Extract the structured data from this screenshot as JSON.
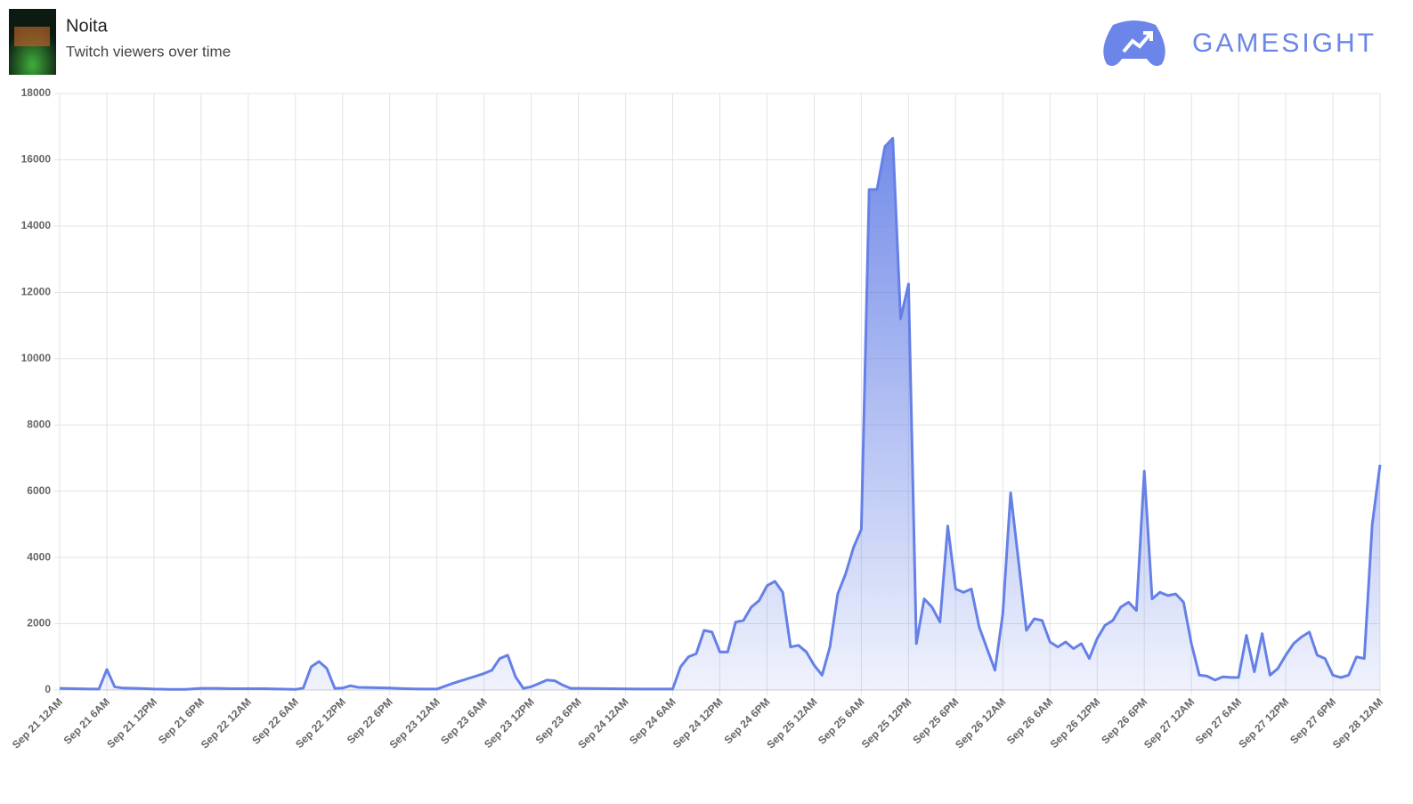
{
  "header": {
    "title": "Noita",
    "subtitle": "Twitch viewers over time",
    "brand": "GAMESIGHT"
  },
  "chart_data": {
    "type": "area",
    "color": "#6580e6",
    "grid": true,
    "x": [
      0,
      2,
      4,
      5,
      6,
      7,
      8,
      10,
      12,
      14,
      16,
      18,
      20,
      22,
      24,
      26,
      28,
      30,
      31,
      32,
      33,
      34,
      35,
      36,
      37,
      38,
      40,
      42,
      44,
      46,
      48,
      50,
      52,
      54,
      55,
      56,
      57,
      58,
      59,
      60,
      61,
      62,
      63,
      64,
      65,
      66,
      70,
      74,
      78,
      79,
      80,
      81,
      82,
      83,
      84,
      85,
      86,
      87,
      88,
      89,
      90,
      91,
      92,
      93,
      94,
      95,
      96,
      97,
      98,
      99,
      100,
      101,
      102,
      103,
      104,
      105,
      106,
      107,
      108,
      109,
      110,
      111,
      112,
      113,
      114,
      115,
      116,
      117,
      118,
      119,
      120,
      121,
      122,
      123,
      124,
      125,
      126,
      127,
      128,
      129,
      130,
      131,
      132,
      133,
      134,
      135,
      136,
      137,
      138,
      139,
      140,
      141,
      142,
      143,
      144,
      145,
      146,
      147,
      148,
      149,
      150,
      151,
      152,
      153,
      154,
      155,
      156,
      157,
      158,
      159,
      160,
      161,
      162,
      163,
      164,
      165,
      166,
      167,
      168
    ],
    "values": [
      50,
      40,
      30,
      30,
      620,
      100,
      60,
      50,
      30,
      20,
      20,
      50,
      50,
      40,
      40,
      40,
      30,
      20,
      60,
      700,
      860,
      650,
      50,
      60,
      130,
      80,
      70,
      60,
      40,
      30,
      30,
      200,
      350,
      500,
      600,
      950,
      1050,
      400,
      50,
      100,
      200,
      300,
      280,
      150,
      50,
      50,
      40,
      30,
      30,
      700,
      1000,
      1100,
      1800,
      1750,
      1150,
      1150,
      2050,
      2100,
      2500,
      2700,
      3150,
      3280,
      2950,
      1300,
      1350,
      1150,
      750,
      450,
      1300,
      2900,
      3500,
      4300,
      4850,
      15100,
      15100,
      16400,
      16650,
      11200,
      12250,
      1400,
      2750,
      2500,
      2050,
      4950,
      3050,
      2950,
      3050,
      1900,
      1250,
      600,
      2300,
      5950,
      3900,
      1800,
      2150,
      2100,
      1450,
      1300,
      1450,
      1250,
      1400,
      950,
      1550,
      1950,
      2100,
      2500,
      2650,
      2400,
      6600,
      2750,
      2950,
      2850,
      2900,
      2650,
      1400,
      450,
      420,
      300,
      400,
      380,
      380,
      1650,
      550,
      1700,
      450,
      650,
      1050,
      1400,
      1600,
      1750,
      1050,
      950,
      450,
      380,
      450,
      1000,
      950,
      5000,
      6800
    ],
    "xlim": [
      0,
      168
    ],
    "xticks": [
      {
        "value": 0,
        "label": "Sep 21 12AM"
      },
      {
        "value": 6,
        "label": "Sep 21 6AM"
      },
      {
        "value": 12,
        "label": "Sep 21 12PM"
      },
      {
        "value": 18,
        "label": "Sep 21 6PM"
      },
      {
        "value": 24,
        "label": "Sep 22 12AM"
      },
      {
        "value": 30,
        "label": "Sep 22 6AM"
      },
      {
        "value": 36,
        "label": "Sep 22 12PM"
      },
      {
        "value": 42,
        "label": "Sep 22 6PM"
      },
      {
        "value": 48,
        "label": "Sep 23 12AM"
      },
      {
        "value": 54,
        "label": "Sep 23 6AM"
      },
      {
        "value": 60,
        "label": "Sep 23 12PM"
      },
      {
        "value": 66,
        "label": "Sep 23 6PM"
      },
      {
        "value": 72,
        "label": "Sep 24 12AM"
      },
      {
        "value": 78,
        "label": "Sep 24 6AM"
      },
      {
        "value": 84,
        "label": "Sep 24 12PM"
      },
      {
        "value": 90,
        "label": "Sep 24 6PM"
      },
      {
        "value": 96,
        "label": "Sep 25 12AM"
      },
      {
        "value": 102,
        "label": "Sep 25 6AM"
      },
      {
        "value": 108,
        "label": "Sep 25 12PM"
      },
      {
        "value": 114,
        "label": "Sep 25 6PM"
      },
      {
        "value": 120,
        "label": "Sep 26 12AM"
      },
      {
        "value": 126,
        "label": "Sep 26 6AM"
      },
      {
        "value": 132,
        "label": "Sep 26 12PM"
      },
      {
        "value": 138,
        "label": "Sep 26 6PM"
      },
      {
        "value": 144,
        "label": "Sep 27 12AM"
      },
      {
        "value": 150,
        "label": "Sep 27 6AM"
      },
      {
        "value": 156,
        "label": "Sep 27 12PM"
      },
      {
        "value": 162,
        "label": "Sep 27 6PM"
      },
      {
        "value": 168,
        "label": "Sep 28 12AM"
      }
    ],
    "ylim": [
      0,
      18000
    ],
    "yticks": [
      0,
      2000,
      4000,
      6000,
      8000,
      10000,
      12000,
      14000,
      16000,
      18000
    ]
  }
}
